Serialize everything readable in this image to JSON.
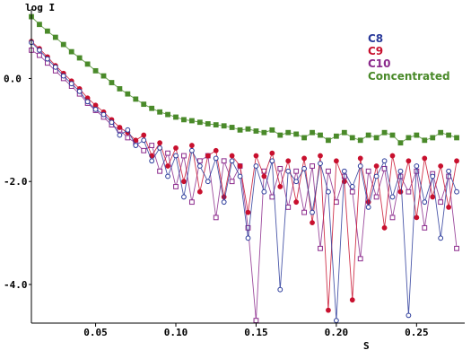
{
  "chart_data": {
    "type": "scatter",
    "title": "",
    "xlabel": "S",
    "ylabel": "log I",
    "xlim": [
      0.01,
      0.28
    ],
    "ylim": [
      -4.75,
      1.35
    ],
    "xticks": [
      0.05,
      0.1,
      0.15,
      0.2,
      0.25
    ],
    "xtick_labels": [
      "0.05",
      "0.10",
      "0.15",
      "0.20",
      "0.25"
    ],
    "yticks": [
      0.0,
      -2.0,
      -4.0
    ],
    "ytick_labels": [
      "0.0",
      "-2.0",
      "-4.0"
    ],
    "grid": false,
    "legend_position": "top-right",
    "series": [
      {
        "name": "C8",
        "color": "#2a3a9a",
        "marker": "circle",
        "x": [
          0.01,
          0.015,
          0.02,
          0.025,
          0.03,
          0.035,
          0.04,
          0.045,
          0.05,
          0.055,
          0.06,
          0.065,
          0.07,
          0.075,
          0.08,
          0.085,
          0.09,
          0.095,
          0.1,
          0.105,
          0.11,
          0.115,
          0.12,
          0.125,
          0.13,
          0.135,
          0.14,
          0.145,
          0.15,
          0.155,
          0.16,
          0.165,
          0.17,
          0.175,
          0.18,
          0.185,
          0.19,
          0.195,
          0.2,
          0.205,
          0.21,
          0.215,
          0.22,
          0.225,
          0.23,
          0.235,
          0.24,
          0.245,
          0.25,
          0.255,
          0.26,
          0.265,
          0.27,
          0.275
        ],
        "y": [
          0.7,
          0.55,
          0.38,
          0.22,
          0.05,
          -0.1,
          -0.25,
          -0.45,
          -0.6,
          -0.7,
          -0.85,
          -1.1,
          -1.0,
          -1.3,
          -1.2,
          -1.6,
          -1.35,
          -1.9,
          -1.5,
          -2.3,
          -1.4,
          -1.7,
          -2.0,
          -1.55,
          -2.4,
          -1.6,
          -1.9,
          -3.1,
          -1.7,
          -2.2,
          -1.6,
          -4.1,
          -1.8,
          -2.0,
          -1.75,
          -2.6,
          -1.65,
          -2.2,
          -4.7,
          -1.8,
          -2.1,
          -1.7,
          -2.5,
          -1.9,
          -1.6,
          -2.3,
          -1.8,
          -4.6,
          -1.7,
          -2.4,
          -1.9,
          -3.1,
          -1.8,
          -2.2
        ]
      },
      {
        "name": "C9",
        "color": "#c8102e",
        "marker": "circle",
        "x": [
          0.01,
          0.015,
          0.02,
          0.025,
          0.03,
          0.035,
          0.04,
          0.045,
          0.05,
          0.055,
          0.06,
          0.065,
          0.07,
          0.075,
          0.08,
          0.085,
          0.09,
          0.095,
          0.1,
          0.105,
          0.11,
          0.115,
          0.12,
          0.125,
          0.13,
          0.135,
          0.14,
          0.145,
          0.15,
          0.155,
          0.16,
          0.165,
          0.17,
          0.175,
          0.18,
          0.185,
          0.19,
          0.195,
          0.2,
          0.205,
          0.21,
          0.215,
          0.22,
          0.225,
          0.23,
          0.235,
          0.24,
          0.245,
          0.25,
          0.255,
          0.26,
          0.265,
          0.27,
          0.275
        ],
        "y": [
          0.72,
          0.58,
          0.42,
          0.25,
          0.1,
          -0.05,
          -0.2,
          -0.38,
          -0.52,
          -0.65,
          -0.8,
          -0.95,
          -1.05,
          -1.2,
          -1.1,
          -1.5,
          -1.25,
          -1.7,
          -1.35,
          -2.0,
          -1.3,
          -2.2,
          -1.5,
          -1.4,
          -2.3,
          -1.5,
          -1.7,
          -2.6,
          -1.5,
          -1.9,
          -1.45,
          -2.1,
          -1.6,
          -2.4,
          -1.55,
          -2.8,
          -1.5,
          -4.5,
          -1.6,
          -2.0,
          -4.3,
          -1.55,
          -2.4,
          -1.7,
          -2.9,
          -1.5,
          -2.2,
          -1.6,
          -2.7,
          -1.55,
          -2.3,
          -1.7,
          -2.5,
          -1.6
        ]
      },
      {
        "name": "C10",
        "color": "#8b2a8c",
        "marker": "square",
        "x": [
          0.01,
          0.015,
          0.02,
          0.025,
          0.03,
          0.035,
          0.04,
          0.045,
          0.05,
          0.055,
          0.06,
          0.065,
          0.07,
          0.075,
          0.08,
          0.085,
          0.09,
          0.095,
          0.1,
          0.105,
          0.11,
          0.115,
          0.12,
          0.125,
          0.13,
          0.135,
          0.14,
          0.145,
          0.15,
          0.155,
          0.16,
          0.165,
          0.17,
          0.175,
          0.18,
          0.185,
          0.19,
          0.195,
          0.2,
          0.205,
          0.21,
          0.215,
          0.22,
          0.225,
          0.23,
          0.235,
          0.24,
          0.245,
          0.25,
          0.255,
          0.26,
          0.265,
          0.27,
          0.275
        ],
        "y": [
          0.55,
          0.45,
          0.3,
          0.15,
          0.0,
          -0.15,
          -0.3,
          -0.48,
          -0.62,
          -0.75,
          -0.9,
          -1.0,
          -1.15,
          -1.25,
          -1.4,
          -1.3,
          -1.8,
          -1.45,
          -2.1,
          -1.5,
          -2.4,
          -1.6,
          -1.5,
          -2.7,
          -1.6,
          -2.0,
          -1.7,
          -2.9,
          -4.7,
          -1.8,
          -2.3,
          -1.75,
          -2.5,
          -1.8,
          -2.6,
          -1.7,
          -3.3,
          -1.8,
          -2.4,
          -1.9,
          -2.2,
          -3.5,
          -1.8,
          -2.3,
          -1.75,
          -2.7,
          -1.9,
          -2.2,
          -1.8,
          -2.9,
          -1.85,
          -2.4,
          -1.9,
          -3.3
        ]
      },
      {
        "name": "Concentrated",
        "color": "#4a8a2a",
        "marker": "square",
        "x": [
          0.01,
          0.015,
          0.02,
          0.025,
          0.03,
          0.035,
          0.04,
          0.045,
          0.05,
          0.055,
          0.06,
          0.065,
          0.07,
          0.075,
          0.08,
          0.085,
          0.09,
          0.095,
          0.1,
          0.105,
          0.11,
          0.115,
          0.12,
          0.125,
          0.13,
          0.135,
          0.14,
          0.145,
          0.15,
          0.155,
          0.16,
          0.165,
          0.17,
          0.175,
          0.18,
          0.185,
          0.19,
          0.195,
          0.2,
          0.205,
          0.21,
          0.215,
          0.22,
          0.225,
          0.23,
          0.235,
          0.24,
          0.245,
          0.25,
          0.255,
          0.26,
          0.265,
          0.27,
          0.275
        ],
        "y": [
          1.2,
          1.05,
          0.92,
          0.8,
          0.66,
          0.52,
          0.4,
          0.28,
          0.15,
          0.05,
          -0.08,
          -0.2,
          -0.3,
          -0.4,
          -0.5,
          -0.58,
          -0.65,
          -0.7,
          -0.75,
          -0.8,
          -0.82,
          -0.85,
          -0.88,
          -0.9,
          -0.92,
          -0.95,
          -1.0,
          -0.98,
          -1.02,
          -1.05,
          -1.0,
          -1.1,
          -1.05,
          -1.08,
          -1.15,
          -1.05,
          -1.1,
          -1.2,
          -1.12,
          -1.05,
          -1.15,
          -1.2,
          -1.1,
          -1.15,
          -1.05,
          -1.1,
          -1.25,
          -1.15,
          -1.1,
          -1.2,
          -1.15,
          -1.05,
          -1.1,
          -1.15
        ]
      }
    ]
  }
}
